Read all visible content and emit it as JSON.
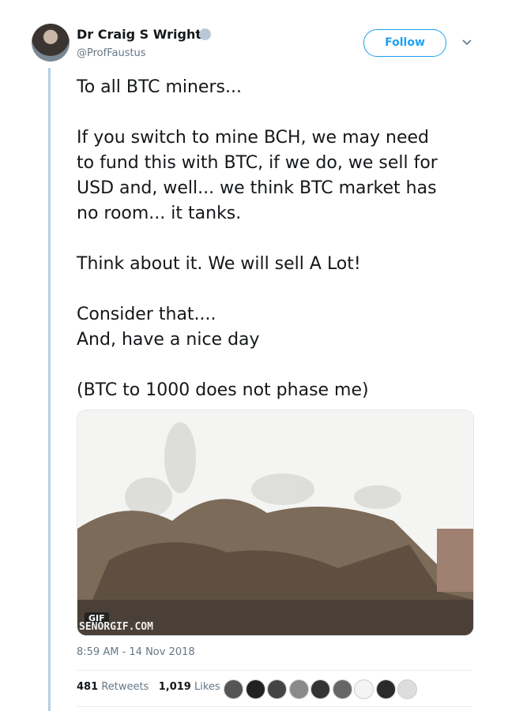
{
  "header": {
    "name": "Dr Craig S Wright",
    "handle": "@ProfFaustus",
    "follow": "Follow"
  },
  "tweet": {
    "paragraphs": [
      [
        "To all BTC miners..."
      ],
      [
        "If you switch to mine BCH, we may need",
        "to fund this with BTC, if we do, we sell for",
        "USD and, well... we think BTC market has",
        "no room... it tanks."
      ],
      [
        "Think about it. We will sell A Lot!"
      ],
      [
        "Consider that....",
        "And, have a nice day"
      ],
      [
        "(BTC to 1000 does not phase me)"
      ]
    ]
  },
  "media": {
    "badge": "GIF",
    "watermark": "SENORGIF.COM"
  },
  "timestamp": "8:59 AM - 14 Nov 2018",
  "stats": {
    "retweets": "481",
    "retweets_label": "Retweets",
    "likes": "1,019",
    "likes_label": "Likes"
  }
}
